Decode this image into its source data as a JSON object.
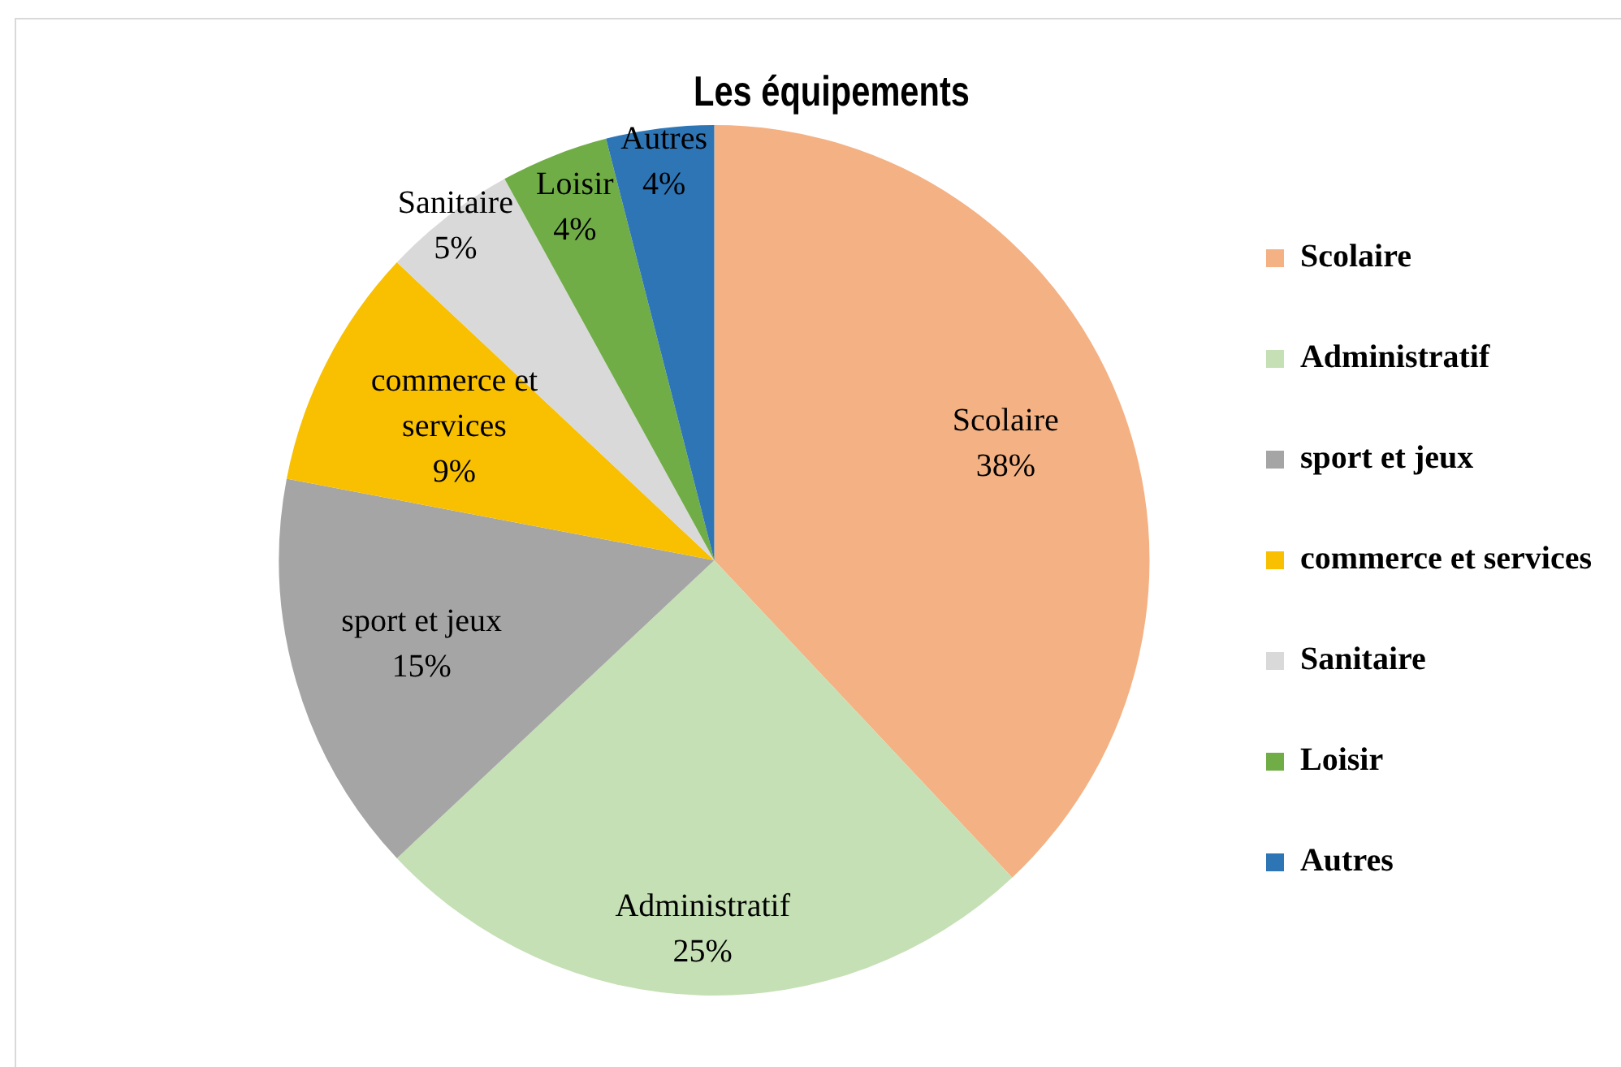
{
  "chart_data": {
    "type": "pie",
    "title": "Les équipements",
    "categories": [
      "Scolaire",
      "Administratif",
      "sport et jeux",
      "commerce et services",
      "Sanitaire",
      "Loisir",
      "Autres"
    ],
    "values": [
      38,
      25,
      15,
      9,
      5,
      4,
      4
    ],
    "colors": [
      "#f4b183",
      "#c5e0b4",
      "#a5a5a5",
      "#f8c000",
      "#d9d9d9",
      "#70ad47",
      "#2e75b6"
    ],
    "value_labels": [
      "38%",
      "25%",
      "15%",
      "9%",
      "5%",
      "4%",
      "4%"
    ],
    "legend": "right"
  }
}
